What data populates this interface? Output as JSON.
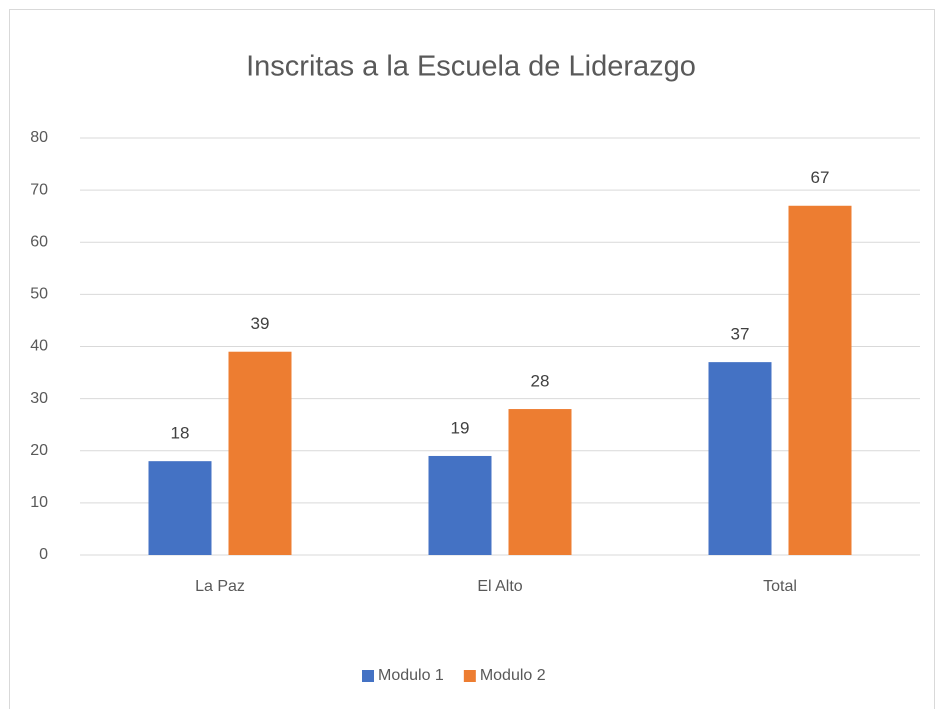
{
  "chart_data": {
    "type": "bar",
    "title": "Inscritas a la Escuela de Liderazgo",
    "categories": [
      "La Paz",
      "El Alto",
      "Total"
    ],
    "series": [
      {
        "name": "Modulo 1",
        "color": "#4472c4",
        "values": [
          18,
          19,
          37
        ]
      },
      {
        "name": "Modulo 2",
        "color": "#ed7d31",
        "values": [
          39,
          28,
          67
        ]
      }
    ],
    "ylim": [
      0,
      80
    ],
    "yticks": [
      0,
      10,
      20,
      30,
      40,
      50,
      60,
      70,
      80
    ],
    "grid": true,
    "legend": "bottom"
  }
}
